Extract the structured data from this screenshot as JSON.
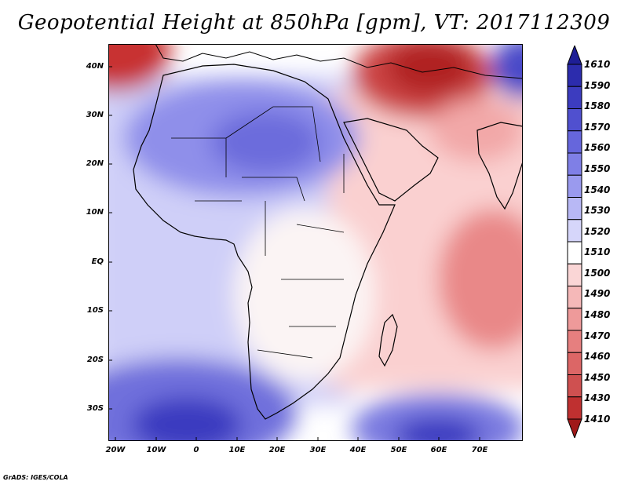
{
  "title": "Geopotential Height at 850hPa [gpm], VT: 2017112309",
  "footer": "GrADS: IGES/COLA",
  "lat_labels": [
    "40N",
    "30N",
    "20N",
    "10N",
    "EQ",
    "10S",
    "20S",
    "30S"
  ],
  "lon_labels": [
    "20W",
    "10W",
    "0",
    "10E",
    "20E",
    "30E",
    "40E",
    "50E",
    "60E",
    "70E"
  ],
  "colorbar": {
    "levels": [
      "1610",
      "1590",
      "1580",
      "1570",
      "1560",
      "1550",
      "1540",
      "1530",
      "1520",
      "1510",
      "1500",
      "1490",
      "1480",
      "1470",
      "1460",
      "1450",
      "1430",
      "1410"
    ],
    "colors": [
      "#1e1e96",
      "#2c2cad",
      "#3c3cbf",
      "#5050cf",
      "#6666dc",
      "#7f7fe6",
      "#9a9aee",
      "#b8b8f5",
      "#d6d6fa",
      "#ffffff",
      "#fad6d6",
      "#f5b8b8",
      "#ee9a9a",
      "#e67f7f",
      "#dc6666",
      "#cf5050",
      "#bf3030",
      "#a01818"
    ]
  }
}
